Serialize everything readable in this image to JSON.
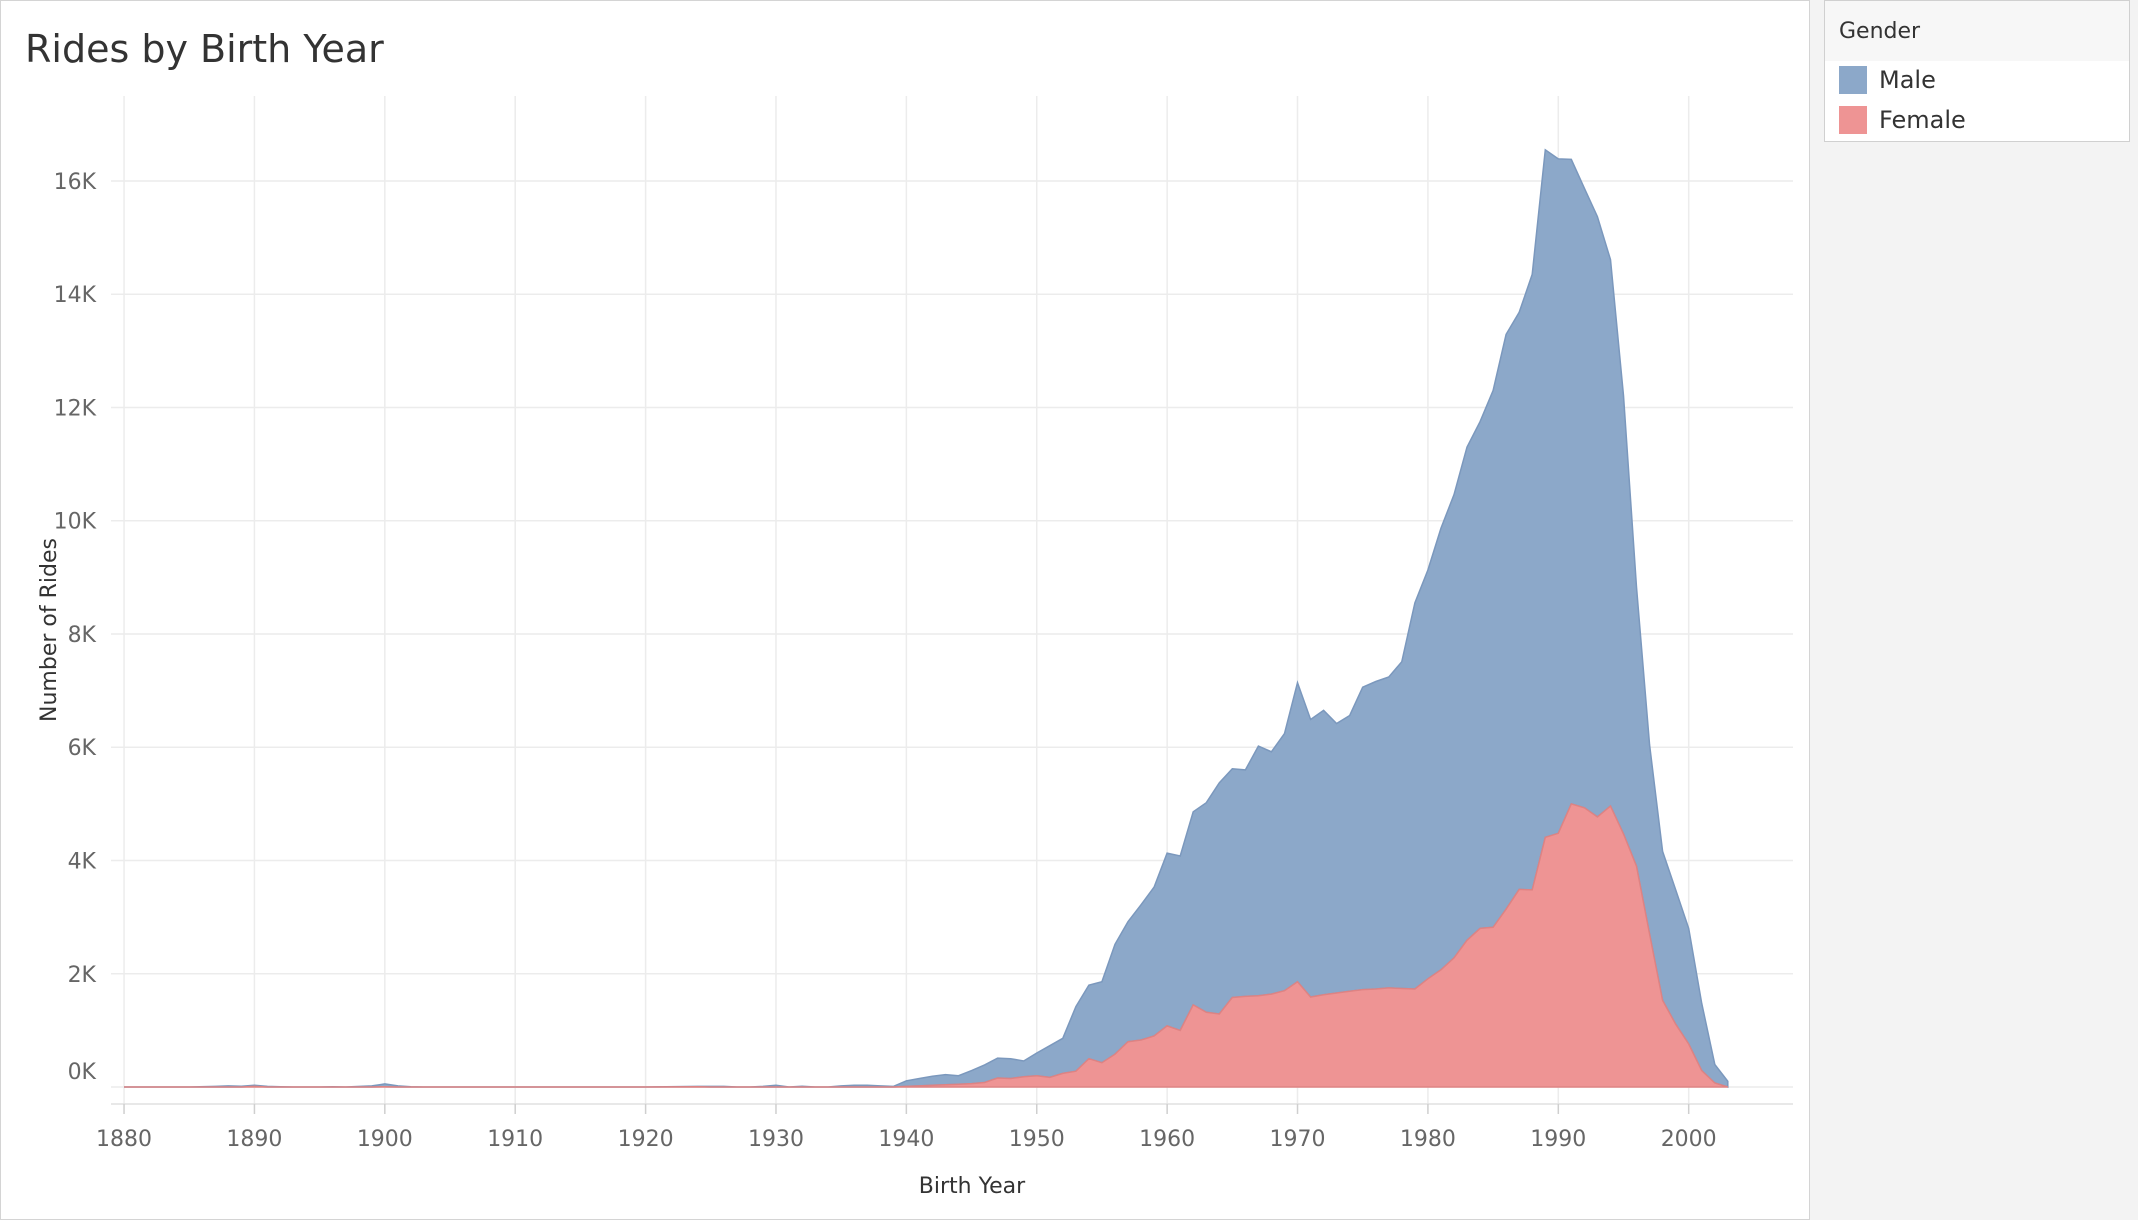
{
  "legend": {
    "title": "Gender",
    "items": [
      {
        "label": "Male",
        "color": "#8ca8c9"
      },
      {
        "label": "Female",
        "color": "#ee9494"
      }
    ]
  },
  "chart_data": {
    "type": "area",
    "stacked": true,
    "title": "Rides by Birth Year",
    "xlabel": "Birth Year",
    "ylabel": "Number of Rides",
    "xlim": [
      1879,
      2008
    ],
    "ylim": [
      -300,
      17500
    ],
    "x_ticks": [
      1880,
      1890,
      1900,
      1910,
      1920,
      1930,
      1940,
      1950,
      1960,
      1970,
      1980,
      1990,
      2000
    ],
    "y_ticks": [
      0,
      2000,
      4000,
      6000,
      8000,
      10000,
      12000,
      14000,
      16000
    ],
    "y_tick_labels": [
      "0K",
      "2K",
      "4K",
      "6K",
      "8K",
      "10K",
      "12K",
      "14K",
      "16K"
    ],
    "grid": true,
    "legend_position": "right",
    "x": [
      1880,
      1885,
      1887,
      1888,
      1889,
      1890,
      1891,
      1892,
      1893,
      1895,
      1896,
      1897,
      1899,
      1900,
      1901,
      1902,
      1903,
      1905,
      1910,
      1920,
      1924,
      1925,
      1926,
      1927,
      1928,
      1929,
      1930,
      1931,
      1932,
      1933,
      1934,
      1935,
      1936,
      1937,
      1938,
      1939,
      1940,
      1941,
      1942,
      1943,
      1944,
      1945,
      1946,
      1947,
      1948,
      1949,
      1950,
      1951,
      1952,
      1953,
      1954,
      1955,
      1956,
      1957,
      1958,
      1959,
      1960,
      1961,
      1962,
      1963,
      1964,
      1965,
      1966,
      1967,
      1968,
      1969,
      1970,
      1971,
      1972,
      1973,
      1974,
      1975,
      1976,
      1977,
      1978,
      1979,
      1980,
      1981,
      1982,
      1983,
      1984,
      1985,
      1986,
      1987,
      1988,
      1989,
      1990,
      1991,
      1992,
      1993,
      1994,
      1995,
      1996,
      1997,
      1998,
      1999,
      2000,
      2001,
      2002,
      2003
    ],
    "series": [
      {
        "name": "Male",
        "values": [
          0,
          0,
          10,
          20,
          15,
          20,
          10,
          5,
          0,
          0,
          5,
          0,
          20,
          50,
          20,
          5,
          0,
          0,
          0,
          0,
          5,
          10,
          10,
          0,
          0,
          10,
          30,
          0,
          15,
          0,
          0,
          20,
          30,
          30,
          20,
          10,
          100,
          130,
          160,
          180,
          150,
          230,
          310,
          350,
          350,
          280,
          400,
          560,
          620,
          1140,
          1300,
          1430,
          1940,
          2120,
          2390,
          2630,
          3050,
          3080,
          3410,
          3700,
          4080,
          4040,
          4000,
          4410,
          4280,
          4540,
          5280,
          4900,
          5020,
          4760,
          4870,
          5340,
          5430,
          5490,
          5770,
          6820,
          7220,
          7800,
          8180,
          8710,
          8950,
          9480,
          10150,
          10190,
          10870,
          12140,
          11910,
          11380,
          10940,
          10600,
          9650,
          7740,
          4930,
          3340,
          2630,
          2370,
          2040,
          1190,
          330,
          100
        ]
      },
      {
        "name": "Female",
        "values": [
          0,
          0,
          0,
          0,
          0,
          10,
          0,
          0,
          0,
          0,
          0,
          0,
          0,
          5,
          0,
          0,
          0,
          0,
          0,
          0,
          5,
          0,
          0,
          0,
          0,
          0,
          0,
          0,
          0,
          0,
          0,
          0,
          0,
          0,
          0,
          0,
          10,
          20,
          30,
          40,
          50,
          60,
          80,
          160,
          150,
          180,
          200,
          170,
          240,
          280,
          500,
          430,
          580,
          800,
          830,
          900,
          1080,
          1000,
          1450,
          1320,
          1290,
          1580,
          1600,
          1610,
          1640,
          1700,
          1860,
          1590,
          1630,
          1660,
          1690,
          1720,
          1730,
          1750,
          1740,
          1730,
          1910,
          2070,
          2280,
          2590,
          2800,
          2820,
          3140,
          3490,
          3480,
          4410,
          4480,
          5000,
          4930,
          4770,
          4960,
          4470,
          3900,
          2700,
          1530,
          1110,
          760,
          290,
          70,
          0
        ]
      }
    ]
  }
}
